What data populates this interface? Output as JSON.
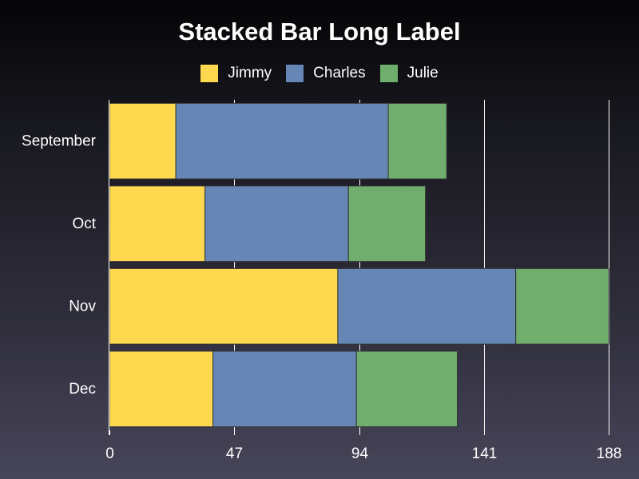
{
  "chart_data": {
    "type": "bar",
    "orientation": "horizontal",
    "stacked": true,
    "title": "Stacked Bar Long Label",
    "categories": [
      "September",
      "Oct",
      "Nov",
      "Dec"
    ],
    "series": [
      {
        "name": "Jimmy",
        "color": "#FED84F",
        "values": [
          25,
          36,
          86,
          39
        ]
      },
      {
        "name": "Charles",
        "color": "#6687B6",
        "values": [
          80,
          54,
          67,
          54
        ]
      },
      {
        "name": "Julie",
        "color": "#70AE6E",
        "values": [
          22,
          29,
          35,
          38
        ]
      }
    ],
    "xlim": [
      0,
      188
    ],
    "xticks": [
      0,
      47,
      94,
      141,
      188
    ],
    "grid": true,
    "legend_position": "top"
  }
}
